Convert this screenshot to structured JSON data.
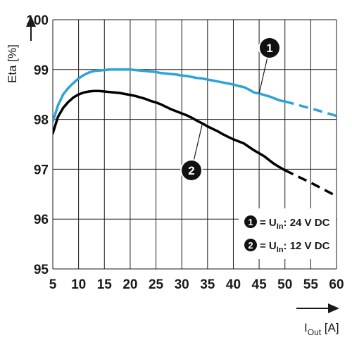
{
  "chart_data": {
    "type": "line",
    "ylabel": "Eta [%]",
    "xlabel": {
      "main": "I",
      "sub": "Out",
      "unit": " [A]"
    },
    "xlim": [
      5,
      60
    ],
    "ylim": [
      95,
      100
    ],
    "xticks": [
      "5",
      "10",
      "15",
      "20",
      "25",
      "30",
      "35",
      "40",
      "45",
      "50",
      "55",
      "60"
    ],
    "yticks": [
      "95",
      "96",
      "97",
      "98",
      "99",
      "100"
    ],
    "grid": true,
    "series": [
      {
        "marker": "1",
        "color": "#2ea3d6",
        "x": [
          5,
          6,
          7,
          8,
          9,
          10,
          11,
          12,
          13,
          14,
          15,
          16,
          17,
          18,
          19,
          20,
          21,
          22,
          23,
          24,
          25,
          26,
          27,
          28,
          29,
          30,
          31,
          32,
          33,
          34,
          35,
          36,
          37,
          38,
          39,
          40,
          41,
          42,
          43,
          44,
          45,
          46,
          47,
          48,
          49,
          50
        ],
        "y": [
          97.95,
          98.28,
          98.5,
          98.63,
          98.73,
          98.82,
          98.89,
          98.94,
          98.97,
          98.98,
          98.99,
          99.0,
          99.0,
          99.0,
          99.0,
          99.0,
          98.99,
          98.98,
          98.97,
          98.96,
          98.95,
          98.93,
          98.92,
          98.91,
          98.9,
          98.88,
          98.87,
          98.85,
          98.83,
          98.82,
          98.8,
          98.78,
          98.76,
          98.74,
          98.72,
          98.7,
          98.67,
          98.65,
          98.6,
          98.54,
          98.52,
          98.49,
          98.46,
          98.42,
          98.38,
          98.36
        ],
        "extrapolated": {
          "x": [
            50,
            55,
            60
          ],
          "y": [
            98.36,
            98.22,
            98.07
          ]
        }
      },
      {
        "marker": "2",
        "color": "#000000",
        "x": [
          5,
          6,
          7,
          8,
          9,
          10,
          11,
          12,
          13,
          14,
          15,
          16,
          17,
          18,
          19,
          20,
          21,
          22,
          23,
          24,
          25,
          26,
          27,
          28,
          29,
          30,
          31,
          32,
          33,
          34,
          35,
          36,
          37,
          38,
          39,
          40,
          41,
          42,
          43,
          44,
          45,
          46,
          47,
          48,
          49,
          50
        ],
        "y": [
          97.72,
          98.05,
          98.23,
          98.35,
          98.44,
          98.5,
          98.54,
          98.56,
          98.57,
          98.57,
          98.56,
          98.55,
          98.54,
          98.53,
          98.51,
          98.49,
          98.47,
          98.44,
          98.41,
          98.37,
          98.34,
          98.3,
          98.25,
          98.2,
          98.16,
          98.12,
          98.08,
          98.03,
          97.97,
          97.92,
          97.86,
          97.81,
          97.76,
          97.7,
          97.65,
          97.6,
          97.56,
          97.52,
          97.45,
          97.38,
          97.32,
          97.26,
          97.18,
          97.1,
          97.04,
          96.98
        ],
        "extrapolated": {
          "x": [
            50,
            55,
            60
          ],
          "y": [
            96.98,
            96.73,
            96.46
          ]
        }
      }
    ],
    "legend": {
      "placement": "bottom-right",
      "entries": [
        {
          "marker": "1",
          "pre": "= U",
          "sub": "In",
          "post": ": 24 V DC"
        },
        {
          "marker": "2",
          "pre": "= U",
          "sub": "In",
          "post": ": 12 V DC"
        }
      ]
    }
  }
}
